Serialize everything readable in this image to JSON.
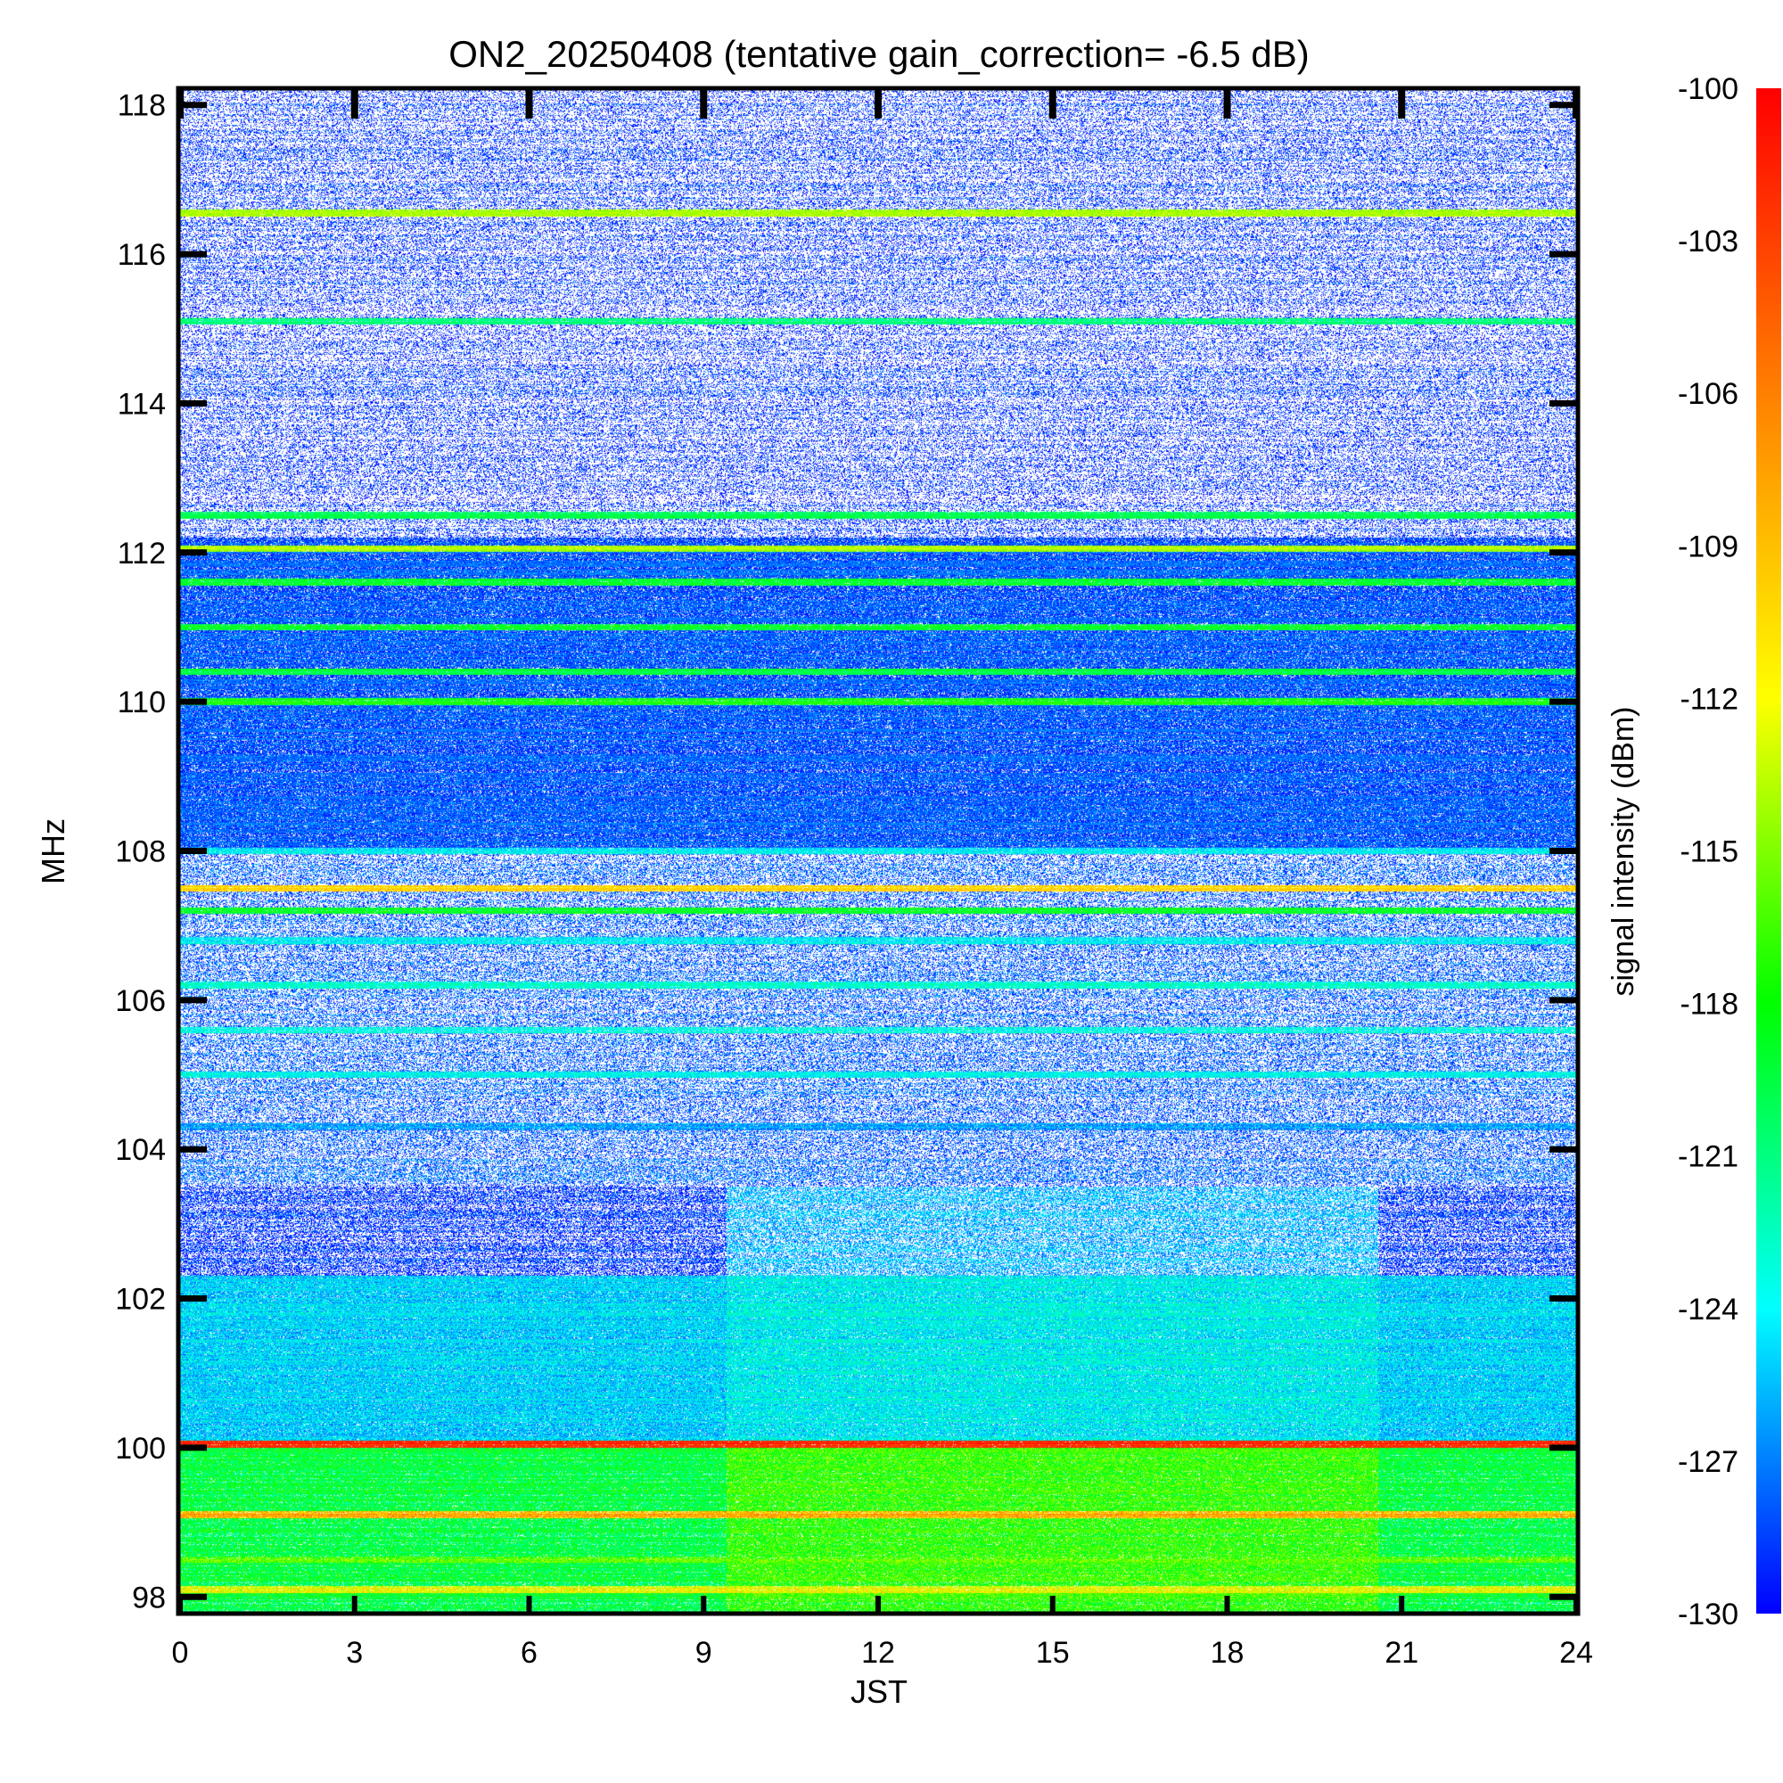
{
  "chart_data": {
    "type": "heatmap",
    "title": "ON2_20250408 (tentative gain_correction= -6.5 dB)",
    "xlabel": "JST",
    "ylabel": "MHz",
    "colorbar_label": "signal intensity (dBm)",
    "xlim": [
      0,
      24
    ],
    "ylim": [
      97.8,
      118.2
    ],
    "zlim": [
      -130,
      -100
    ],
    "x_ticks": [
      0,
      3,
      6,
      9,
      12,
      15,
      18,
      21,
      24
    ],
    "x_tick_labels": [
      "0",
      "3",
      "6",
      "9",
      "12",
      "15",
      "18",
      "21",
      "24"
    ],
    "y_ticks": [
      98,
      100,
      102,
      104,
      106,
      108,
      110,
      112,
      114,
      116,
      118
    ],
    "y_tick_labels": [
      "98",
      "100",
      "102",
      "104",
      "106",
      "108",
      "110",
      "112",
      "114",
      "116",
      "118"
    ],
    "colorbar_ticks": [
      -100,
      -103,
      -106,
      -109,
      -112,
      -115,
      -118,
      -121,
      -124,
      -127,
      -130
    ],
    "colorbar_tick_labels": [
      "-100",
      "-103",
      "-106",
      "-109",
      "-112",
      "-115",
      "-118",
      "-121",
      "-124",
      "-127",
      "-130"
    ],
    "colormap": [
      "#0000ff",
      "#00ffff",
      "#00ff00",
      "#ffff00",
      "#ff8000",
      "#ff0000"
    ],
    "low_value_color": "#ffffff",
    "daytime_window_hours": [
      9.4,
      20.6
    ],
    "bands": [
      {
        "f_range": [
          97.8,
          100.0
        ],
        "night": -119.5,
        "day": -117.0,
        "noise": 3.0,
        "coverage": 1.0
      },
      {
        "f_range": [
          100.0,
          100.1
        ],
        "night": -102.0,
        "day": -102.0,
        "noise": 1.5,
        "coverage": 1.0
      },
      {
        "f_range": [
          100.1,
          102.3
        ],
        "night": -125.0,
        "day": -124.0,
        "noise": 2.5,
        "coverage": 1.0
      },
      {
        "f_range": [
          102.3,
          103.5
        ],
        "night": -129.0,
        "day": -126.0,
        "noise": 2.0,
        "coverage": 0.6
      },
      {
        "f_range": [
          103.5,
          108.0
        ],
        "night": -128.0,
        "day": -128.0,
        "noise": 2.0,
        "coverage": 0.45
      },
      {
        "f_range": [
          108.0,
          112.2
        ],
        "night": -128.0,
        "day": -128.0,
        "noise": 2.0,
        "coverage": 0.9
      },
      {
        "f_range": [
          112.2,
          118.2
        ],
        "night": -129.0,
        "day": -129.0,
        "noise": 1.5,
        "coverage": 0.35
      }
    ],
    "carriers": [
      {
        "f": 98.1,
        "level": -112
      },
      {
        "f": 98.5,
        "level": -116
      },
      {
        "f": 99.1,
        "level": -108
      },
      {
        "f": 100.05,
        "level": -102
      },
      {
        "f": 104.3,
        "level": -126
      },
      {
        "f": 105.0,
        "level": -124
      },
      {
        "f": 105.6,
        "level": -123
      },
      {
        "f": 106.2,
        "level": -123
      },
      {
        "f": 106.8,
        "level": -124
      },
      {
        "f": 107.2,
        "level": -119
      },
      {
        "f": 107.5,
        "level": -110
      },
      {
        "f": 108.0,
        "level": -124
      },
      {
        "f": 110.0,
        "level": -118
      },
      {
        "f": 110.4,
        "level": -120
      },
      {
        "f": 111.0,
        "level": -119
      },
      {
        "f": 111.6,
        "level": -119
      },
      {
        "f": 112.05,
        "level": -114
      },
      {
        "f": 112.5,
        "level": -120
      },
      {
        "f": 115.1,
        "level": -121
      },
      {
        "f": 116.55,
        "level": -114
      }
    ]
  }
}
